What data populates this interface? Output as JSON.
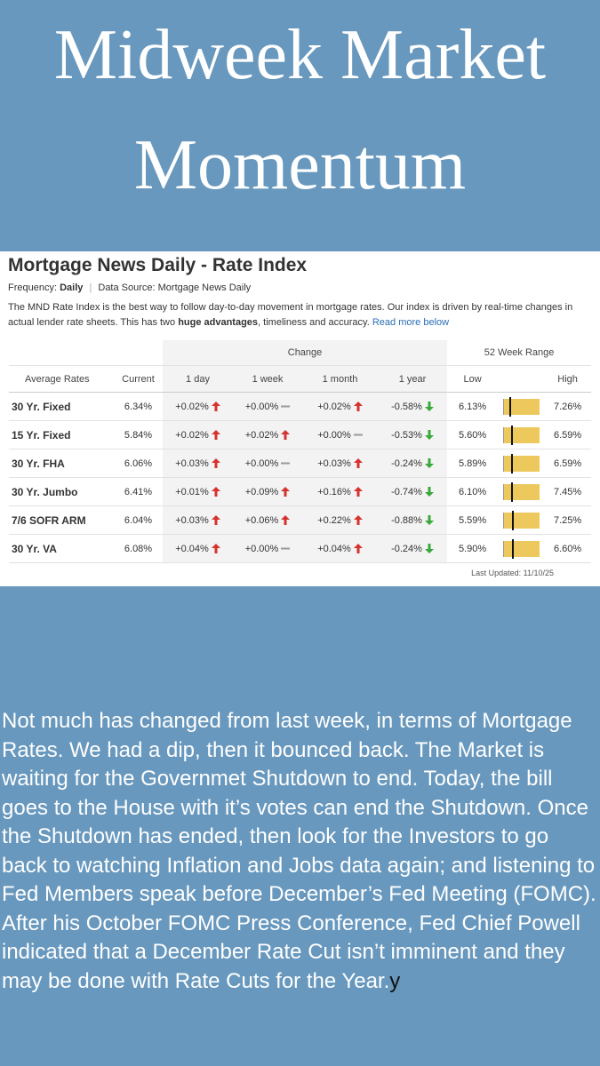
{
  "header": {
    "title": "Midweek Market Momentum"
  },
  "card": {
    "title": "Mortgage News Daily - Rate Index",
    "frequency_label": "Frequency:",
    "frequency_value": "Daily",
    "separator": "|",
    "source": "Data Source: Mortgage News Daily",
    "description_start": "The MND Rate Index is the best way to follow day-to-day movement in mortgage rates. Our index is driven by real-time changes in actual lender rate sheets. This has two",
    "description_bold": "huge advantages",
    "description_end": ", timeliness and accuracy.",
    "read_more": "Read more below",
    "table": {
      "group_headers": {
        "change": "Change",
        "range": "52 Week Range"
      },
      "columns": [
        "Average Rates",
        "Current",
        "1 day",
        "1 week",
        "1 month",
        "1 year",
        "Low",
        "High"
      ],
      "rows": [
        {
          "name": "30 Yr. Fixed",
          "current": "6.34%",
          "day": "+0.02%",
          "week": "+0.00%",
          "month": "+0.02%",
          "year": "-0.58%",
          "low": "6.13%",
          "high": "7.26%"
        },
        {
          "name": "15 Yr. Fixed",
          "current": "5.84%",
          "day": "+0.02%",
          "week": "+0.02%",
          "month": "+0.00%",
          "year": "-0.53%",
          "low": "5.60%",
          "high": "6.59%"
        },
        {
          "name": "30 Yr. FHA",
          "current": "6.06%",
          "day": "+0.03%",
          "week": "+0.00%",
          "month": "+0.03%",
          "year": "-0.24%",
          "low": "5.89%",
          "high": "6.59%"
        },
        {
          "name": "30 Yr. Jumbo",
          "current": "6.41%",
          "day": "+0.01%",
          "week": "+0.09%",
          "month": "+0.16%",
          "year": "-0.74%",
          "low": "6.10%",
          "high": "7.45%"
        },
        {
          "name": "7/6 SOFR ARM",
          "current": "6.04%",
          "day": "+0.03%",
          "week": "+0.06%",
          "month": "+0.22%",
          "year": "-0.88%",
          "low": "5.59%",
          "high": "7.25%"
        },
        {
          "name": "30 Yr. VA",
          "current": "6.08%",
          "day": "+0.04%",
          "week": "+0.00%",
          "month": "+0.04%",
          "year": "-0.24%",
          "low": "5.90%",
          "high": "6.60%"
        }
      ]
    },
    "last_updated": "Last Updated: 11/10/25"
  },
  "body": {
    "paragraph": "Not much has changed from last week, in terms of Mortgage Rates.  We had a dip, then it bounced back.  The Market is waiting for the Governmet Shutdown to end.  Today, the bill goes to the House with it’s votes can end the Shutdown.  Once the Shutdown has ended, then look for the Investors to go back to watching Inflation and Jobs data again; and listening to Fed Members speak before December’s Fed Meeting (FOMC).  After his October FOMC Press Conference, Fed Chief Powell indicated that a December Rate Cut isn’t imminent and they may be done with Rate Cuts for the Year.",
    "trailing": "y"
  }
}
